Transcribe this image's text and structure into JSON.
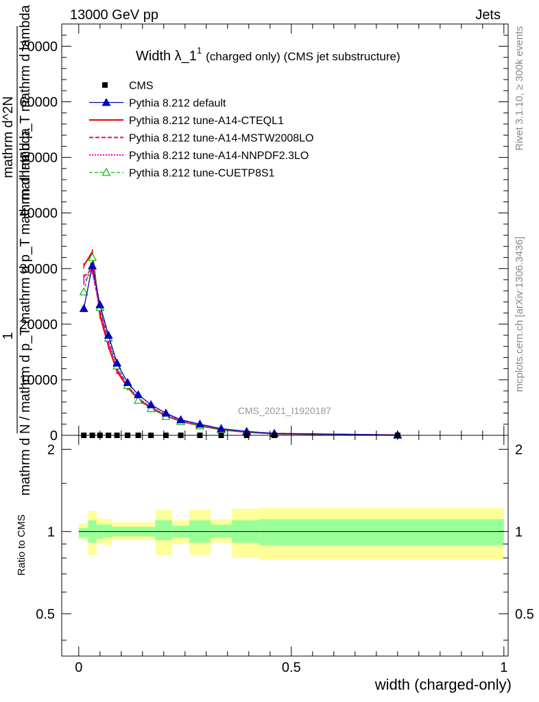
{
  "header": {
    "energy_label": "13000 GeV pp",
    "category_label": "Jets",
    "title_main": "Width λ_1",
    "title_sup": "1",
    "title_suffix": "(charged only) (CMS jet substructure)",
    "watermark": "CMS_2021_I1920187",
    "side_label_rivet": "Rivet 3.1.10, ≥ 300k events",
    "side_label_site": "mcplots.cern.ch [arXiv:1306.3436]"
  },
  "colors": {
    "cms": "#000000",
    "default": "#0000bb",
    "cteql1": "#ee0000",
    "mstw": "#ee0077",
    "nnpdf": "#ee00bb",
    "cuetp8s1": "#00bb00",
    "band_outer": "#ffff99",
    "band_inner": "#99ff99"
  },
  "chart_data": [
    {
      "type": "line",
      "title": "Width λ_1^1 (charged only) (CMS jet substructure)",
      "ylabel_main": "1",
      "ylabel_numerator": "mathrm d^2N",
      "ylabel_denominator": "mathrm d p_T mathrm d lambda",
      "ylabel_norm": "mathrm d N / mathrm d p_T mathrm d p_T mathrm d lambda",
      "xlim": [
        -0.04,
        1.01
      ],
      "ylim": [
        0,
        74000
      ],
      "yticks": [
        0,
        10000,
        20000,
        30000,
        40000,
        50000,
        60000,
        70000
      ],
      "ytick_labels": [
        "0",
        "10000",
        "20000",
        "30000",
        "40000",
        "50000",
        "60000",
        "70000"
      ],
      "legend": [
        {
          "key": "cms",
          "label": "CMS"
        },
        {
          "key": "default",
          "label": "Pythia 8.212 default"
        },
        {
          "key": "cteql1",
          "label": "Pythia 8.212 tune-A14-CTEQL1"
        },
        {
          "key": "mstw",
          "label": "Pythia 8.212 tune-A14-MSTW2008LO"
        },
        {
          "key": "nnpdf",
          "label": "Pythia 8.212 tune-A14-NNPDF2.3LO"
        },
        {
          "key": "cuetp8s1",
          "label": "Pythia 8.212 tune-CUETP8S1"
        }
      ],
      "x": [
        0.012,
        0.032,
        0.05,
        0.07,
        0.09,
        0.115,
        0.14,
        0.17,
        0.205,
        0.24,
        0.285,
        0.335,
        0.395,
        0.46,
        0.75
      ],
      "series": [
        {
          "key": "cms",
          "name": "CMS",
          "values": [
            0,
            0,
            0,
            0,
            0,
            0,
            0,
            0,
            0,
            0,
            0,
            0,
            0,
            0,
            0
          ]
        },
        {
          "key": "default",
          "name": "Pythia 8.212 default",
          "values": [
            22800,
            30500,
            23500,
            18000,
            13000,
            9500,
            7300,
            5500,
            4000,
            2800,
            2000,
            1200,
            700,
            350,
            50
          ]
        },
        {
          "key": "cteql1",
          "name": "Pythia 8.212 tune-A14-CTEQL1",
          "values": [
            30500,
            33000,
            21500,
            16000,
            11500,
            8600,
            6500,
            4900,
            3500,
            2500,
            1700,
            1000,
            550,
            280,
            40
          ]
        },
        {
          "key": "mstw",
          "name": "Pythia 8.212 tune-A14-MSTW2008LO",
          "values": [
            28500,
            30000,
            22500,
            16500,
            11800,
            8800,
            6600,
            5000,
            3600,
            2600,
            1750,
            1050,
            580,
            300,
            45
          ]
        },
        {
          "key": "nnpdf",
          "name": "Pythia 8.212 tune-A14-NNPDF2.3LO",
          "values": [
            27500,
            29500,
            22800,
            16800,
            12000,
            9000,
            6700,
            5100,
            3700,
            2700,
            1800,
            1080,
            600,
            310,
            45
          ]
        },
        {
          "key": "cuetp8s1",
          "name": "Pythia 8.212 tune-CUETP8S1",
          "values": [
            25800,
            32000,
            23000,
            17500,
            12500,
            9000,
            6300,
            4800,
            3400,
            2500,
            1700,
            1000,
            550,
            280,
            40
          ]
        }
      ]
    },
    {
      "type": "area",
      "xlabel": "width (charged-only)",
      "ylabel": "Ratio to CMS",
      "xlim": [
        -0.04,
        1.01
      ],
      "ylim": [
        0.35,
        2.25
      ],
      "yticks": [
        0.5,
        1,
        2
      ],
      "ytick_labels": [
        "0.5",
        "1",
        "2"
      ],
      "xticks": [
        0,
        0.5,
        1
      ],
      "xtick_labels": [
        "0",
        "0.5",
        "1"
      ],
      "bins": [
        {
          "lo": 0.0,
          "hi": 0.022,
          "inner": [
            0.95,
            1.03
          ],
          "outer": [
            0.94,
            1.07
          ]
        },
        {
          "lo": 0.022,
          "hi": 0.042,
          "inner": [
            0.91,
            1.1
          ],
          "outer": [
            0.82,
            1.19
          ]
        },
        {
          "lo": 0.042,
          "hi": 0.058,
          "inner": [
            0.94,
            1.06
          ],
          "outer": [
            0.9,
            1.12
          ]
        },
        {
          "lo": 0.058,
          "hi": 0.078,
          "inner": [
            0.95,
            1.06
          ],
          "outer": [
            0.89,
            1.11
          ]
        },
        {
          "lo": 0.078,
          "hi": 0.18,
          "inner": [
            0.96,
            1.04
          ],
          "outer": [
            0.93,
            1.08
          ]
        },
        {
          "lo": 0.18,
          "hi": 0.22,
          "inner": [
            0.93,
            1.1
          ],
          "outer": [
            0.82,
            1.2
          ]
        },
        {
          "lo": 0.22,
          "hi": 0.26,
          "inner": [
            0.95,
            1.05
          ],
          "outer": [
            0.9,
            1.1
          ]
        },
        {
          "lo": 0.26,
          "hi": 0.31,
          "inner": [
            0.91,
            1.1
          ],
          "outer": [
            0.82,
            1.2
          ]
        },
        {
          "lo": 0.31,
          "hi": 0.36,
          "inner": [
            0.95,
            1.06
          ],
          "outer": [
            0.91,
            1.11
          ]
        },
        {
          "lo": 0.36,
          "hi": 0.425,
          "inner": [
            0.91,
            1.1
          ],
          "outer": [
            0.8,
            1.21
          ]
        },
        {
          "lo": 0.425,
          "hi": 1.0,
          "inner": [
            0.89,
            1.11
          ],
          "outer": [
            0.79,
            1.22
          ]
        }
      ]
    }
  ]
}
